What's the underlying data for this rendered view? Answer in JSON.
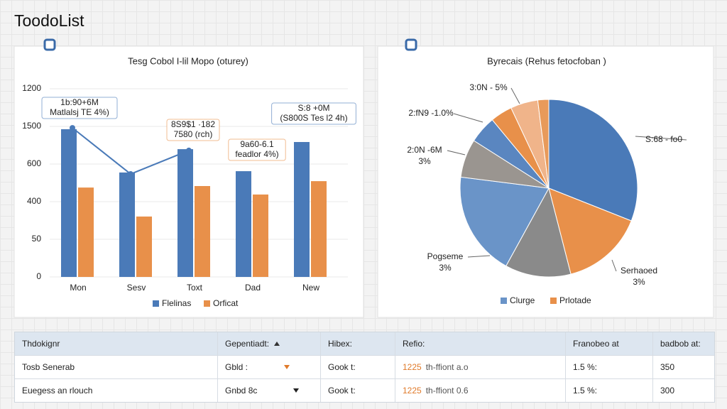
{
  "header": {
    "title": "ToodoList"
  },
  "chart_data": [
    {
      "type": "bar",
      "title": "Tesg Cobol I-lil Mopo (oturey)",
      "categories": [
        "Mon",
        "Sesv",
        "Toxt",
        "Dad",
        "New"
      ],
      "series": [
        {
          "name": "Flelinas",
          "color": "#4a7ab8",
          "values": [
            785,
            555,
            679,
            562,
            717
          ]
        },
        {
          "name": "Orficat",
          "color": "#e8904a",
          "values": [
            475,
            321,
            483,
            438,
            509
          ]
        },
        {
          "type": "line",
          "color": "#4a7ab8",
          "values": [
            792,
            547,
            672,
            null,
            null
          ]
        }
      ],
      "ylim": [
        0,
        1000
      ],
      "yticks": [
        0,
        {
          "value": 200,
          "label": "50"
        },
        400,
        600,
        {
          "value": 800,
          "label": "1500"
        },
        {
          "value": 1000,
          "label": "1200"
        }
      ],
      "grid": true,
      "legend": "bottom",
      "annotations": [
        {
          "lines": [
            "1b:90+6M",
            "Matlalsj TE 4%)"
          ],
          "color": "#4a7ab8"
        },
        {
          "lines": [
            "8S9$1 ·182",
            "7580 (rch)"
          ],
          "color": "#e8904a"
        },
        {
          "lines": [
            "9a60-6.1",
            "feadlor 4%)"
          ],
          "color": "#e8904a"
        },
        {
          "lines": [
            "S:8 +0M",
            "(S800S Tes l2 4h)"
          ],
          "color": "#4a7ab8"
        }
      ]
    },
    {
      "type": "pie",
      "title": "Byrecais (Rehus fetocfoban )",
      "values": [
        31,
        15,
        12,
        19,
        7,
        5,
        4,
        5,
        2
      ],
      "colors": [
        "#4a7ab8",
        "#e8904a",
        "#8a8a8a",
        "#6a94c8",
        "#9a9590",
        "#5a86c0",
        "#e8904a",
        "#f0b48a",
        "#e89a5a"
      ],
      "categories": [
        [
          "S:68 - fo0"
        ],
        [
          "Serhaoed",
          "3%"
        ],
        null,
        [
          "Pogseme",
          "3%"
        ],
        [
          "2:0N -6M",
          "3%"
        ],
        [
          "2:fN9 -1.0%"
        ],
        null,
        [
          "3:0N - 5%"
        ],
        null
      ],
      "legend": [
        {
          "name": "Clurge",
          "color": "#6a94c8"
        },
        {
          "name": "Prlotade",
          "color": "#e8904a"
        }
      ]
    }
  ],
  "table": {
    "header": [
      "Thdokignr",
      "Gepentiadt:",
      "Hibex:",
      "Refio:",
      "Franobeo at",
      "badbob at:"
    ],
    "rows": [
      [
        "Tosb Senerab",
        "Gbld :",
        "Gook t:",
        [
          "1225",
          "th-ffiont a.o"
        ],
        "1.5 %:",
        "350"
      ],
      [
        "Euegess an rlouch",
        "Gnbd 8c",
        "Gook t:",
        [
          "1225",
          "th-ffiont 0.6"
        ],
        "1.5 %:",
        "300"
      ]
    ]
  }
}
